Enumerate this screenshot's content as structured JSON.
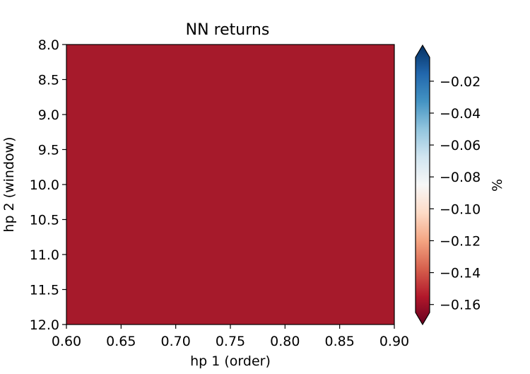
{
  "chart_data": {
    "type": "heatmap",
    "title": "NN returns",
    "xlabel": "hp 1 (order)",
    "ylabel": "hp 2 (window)",
    "xlim": [
      0.6,
      0.9
    ],
    "ylim": [
      8.0,
      12.0
    ],
    "y_inverted": true,
    "x_ticks": [
      "0.60",
      "0.65",
      "0.70",
      "0.75",
      "0.80",
      "0.85",
      "0.90"
    ],
    "y_ticks": [
      "8.0",
      "8.5",
      "9.0",
      "9.5",
      "10.0",
      "10.5",
      "11.0",
      "11.5",
      "12.0"
    ],
    "x_tick_values": [
      0.6,
      0.65,
      0.7,
      0.75,
      0.8,
      0.85,
      0.9
    ],
    "y_tick_values": [
      8.0,
      8.5,
      9.0,
      9.5,
      10.0,
      10.5,
      11.0,
      11.5,
      12.0
    ],
    "grid": false,
    "field_value": -0.145,
    "field_color": "#a61a2b",
    "colorbar": {
      "label": "%",
      "colormap": "RdBu",
      "range": [
        -0.165,
        -0.005
      ],
      "extend": "both",
      "ticks": [
        "−0.02",
        "−0.04",
        "−0.06",
        "−0.08",
        "−0.10",
        "−0.12",
        "−0.14",
        "−0.16"
      ],
      "tick_values": [
        -0.02,
        -0.04,
        -0.06,
        -0.08,
        -0.1,
        -0.12,
        -0.14,
        -0.16
      ]
    }
  }
}
